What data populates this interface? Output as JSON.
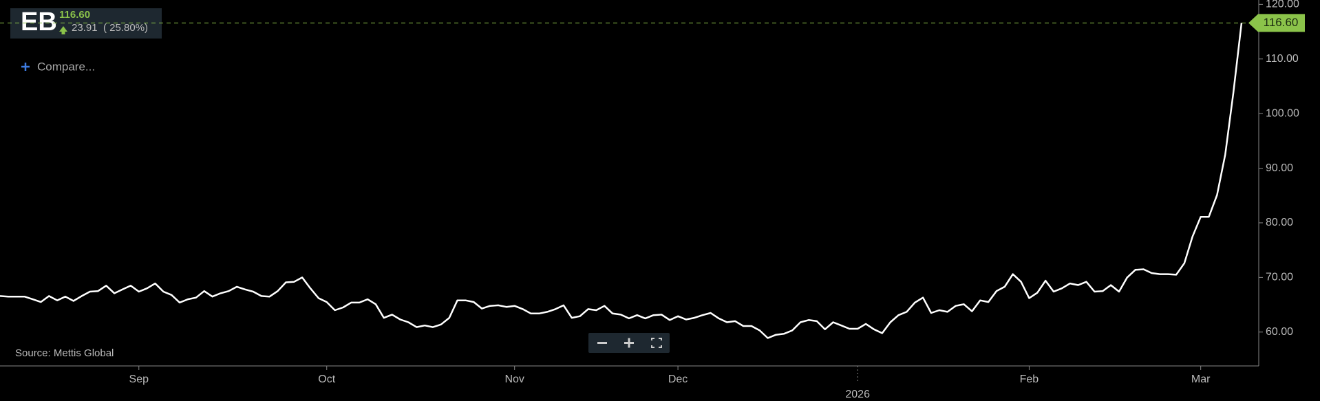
{
  "header": {
    "symbol": "EB",
    "price": "116.60",
    "change": "23.91",
    "change_pct": "( 25.80%)",
    "compare": "Compare...",
    "source": "Source: Mettis Global"
  },
  "chart_data": {
    "type": "line",
    "color": "#ffffff",
    "ylim": [
      53.8,
      120.8
    ],
    "yticks": [
      {
        "value": 60,
        "label": "60.00"
      },
      {
        "value": 70,
        "label": "70.00"
      },
      {
        "value": 80,
        "label": "80.00"
      },
      {
        "value": 90,
        "label": "90.00"
      },
      {
        "value": 100,
        "label": "100.00"
      },
      {
        "value": 110,
        "label": "110.00"
      },
      {
        "value": 120,
        "label": "120.00"
      }
    ],
    "grid": false,
    "last_label": {
      "value": 116.6,
      "label": "116.60",
      "color": "#8bc34a"
    },
    "categories": [
      null,
      null,
      null,
      null,
      null,
      null,
      null,
      null,
      null,
      null,
      null,
      null,
      null,
      null,
      null,
      null,
      null,
      "Sep",
      null,
      null,
      null,
      null,
      null,
      null,
      null,
      null,
      null,
      null,
      null,
      null,
      null,
      null,
      null,
      null,
      null,
      null,
      null,
      null,
      null,
      null,
      "Oct",
      null,
      null,
      null,
      null,
      null,
      null,
      null,
      null,
      null,
      null,
      null,
      null,
      null,
      null,
      null,
      null,
      null,
      null,
      null,
      null,
      null,
      null,
      "Nov",
      null,
      null,
      null,
      null,
      null,
      null,
      null,
      null,
      null,
      null,
      null,
      null,
      null,
      null,
      null,
      null,
      null,
      null,
      null,
      "Dec",
      null,
      null,
      null,
      null,
      null,
      null,
      null,
      null,
      null,
      null,
      null,
      null,
      null,
      null,
      null,
      null,
      null,
      null,
      null,
      null,
      null,
      "2026",
      null,
      null,
      null,
      null,
      null,
      null,
      null,
      null,
      null,
      null,
      null,
      null,
      null,
      null,
      null,
      null,
      null,
      null,
      null,
      null,
      "Feb",
      null,
      null,
      null,
      null,
      null,
      null,
      null,
      null,
      null,
      null,
      null,
      null,
      null,
      null,
      null,
      null,
      null,
      null,
      null,
      null,
      "Mar",
      null,
      null,
      null,
      null,
      null
    ],
    "values": [
      66.6,
      66.5,
      66.5,
      66.5,
      66.0,
      65.5,
      66.6,
      65.8,
      66.5,
      65.7,
      66.6,
      67.4,
      67.5,
      68.5,
      67.1,
      67.8,
      68.5,
      67.4,
      68.0,
      68.9,
      67.4,
      66.8,
      65.4,
      66.0,
      66.3,
      67.5,
      66.5,
      67.1,
      67.5,
      68.3,
      67.8,
      67.4,
      66.6,
      66.5,
      67.5,
      69.1,
      69.2,
      70.0,
      68.0,
      66.2,
      65.5,
      64.0,
      64.5,
      65.4,
      65.4,
      66.0,
      65.1,
      62.6,
      63.2,
      62.3,
      61.8,
      60.9,
      61.2,
      60.9,
      61.4,
      62.6,
      65.8,
      65.8,
      65.5,
      64.3,
      64.8,
      64.9,
      64.6,
      64.8,
      64.2,
      63.4,
      63.4,
      63.7,
      64.2,
      64.9,
      62.6,
      62.9,
      64.2,
      64.0,
      64.8,
      63.4,
      63.2,
      62.5,
      63.1,
      62.5,
      63.1,
      63.2,
      62.2,
      62.9,
      62.3,
      62.6,
      63.1,
      63.5,
      62.5,
      61.8,
      62.0,
      61.1,
      61.1,
      60.3,
      58.9,
      59.5,
      59.7,
      60.3,
      61.8,
      62.2,
      62.0,
      60.5,
      61.8,
      61.2,
      60.6,
      60.6,
      61.5,
      60.5,
      59.8,
      61.8,
      63.1,
      63.7,
      65.4,
      66.3,
      63.5,
      64.0,
      63.7,
      64.8,
      65.1,
      63.8,
      65.8,
      65.5,
      67.5,
      68.3,
      70.6,
      69.2,
      66.2,
      67.2,
      69.4,
      67.4,
      68.0,
      68.9,
      68.6,
      69.2,
      67.4,
      67.5,
      68.6,
      67.4,
      70.0,
      71.4,
      71.5,
      70.8,
      70.6,
      70.6,
      70.5,
      72.6,
      77.5,
      81.1,
      81.1,
      85.1,
      92.5,
      103.8,
      116.6
    ]
  }
}
